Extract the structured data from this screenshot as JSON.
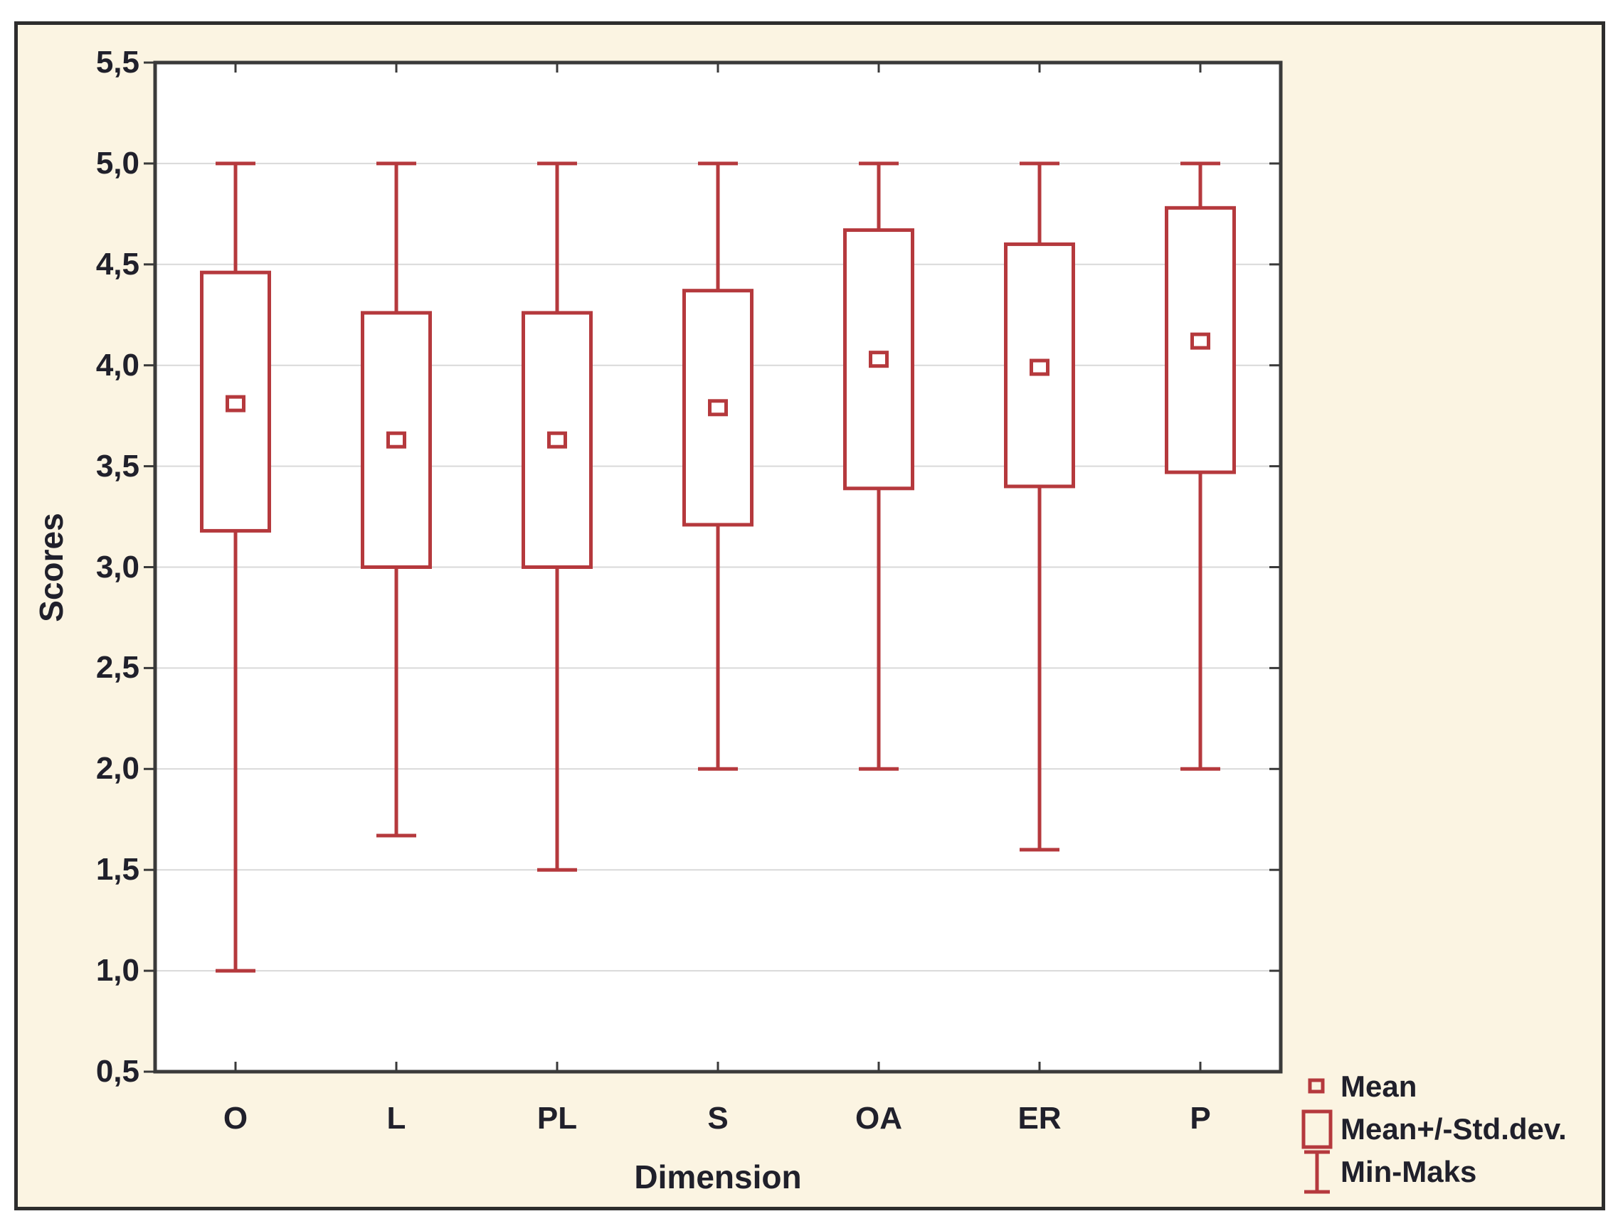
{
  "figure": {
    "y_axis_title": "Scores",
    "x_axis_title": "Dimension"
  },
  "chart_data": {
    "type": "box",
    "title": "",
    "xlabel": "Dimension",
    "ylabel": "Scores",
    "ylim": [
      0.5,
      5.5
    ],
    "ytick_step": 0.5,
    "ytick_labels": [
      "5,5",
      "5,0",
      "4,5",
      "4,0",
      "3,5",
      "3,0",
      "2,5",
      "2,0",
      "1,5",
      "1,0",
      "0,5"
    ],
    "grid": "horizontal",
    "categories": [
      "O",
      "L",
      "PL",
      "S",
      "OA",
      "ER",
      "P"
    ],
    "series": [
      {
        "category": "O",
        "mean": 3.81,
        "box_low": 3.18,
        "box_high": 4.46,
        "min": 1.0,
        "max": 5.0
      },
      {
        "category": "L",
        "mean": 3.63,
        "box_low": 3.0,
        "box_high": 4.26,
        "min": 1.67,
        "max": 5.0
      },
      {
        "category": "PL",
        "mean": 3.63,
        "box_low": 3.0,
        "box_high": 4.26,
        "min": 1.5,
        "max": 5.0
      },
      {
        "category": "S",
        "mean": 3.79,
        "box_low": 3.21,
        "box_high": 4.37,
        "min": 2.0,
        "max": 5.0
      },
      {
        "category": "OA",
        "mean": 4.03,
        "box_low": 3.39,
        "box_high": 4.67,
        "min": 2.0,
        "max": 5.0
      },
      {
        "category": "ER",
        "mean": 3.99,
        "box_low": 3.4,
        "box_high": 4.6,
        "min": 1.6,
        "max": 5.0
      },
      {
        "category": "P",
        "mean": 4.12,
        "box_low": 3.47,
        "box_high": 4.78,
        "min": 2.0,
        "max": 5.0
      }
    ],
    "legend": [
      {
        "label": "Mean",
        "marker": "small-square"
      },
      {
        "label": "Mean+/-Std.dev.",
        "marker": "large-square"
      },
      {
        "label": "Min-Maks",
        "marker": "error-bar"
      }
    ],
    "legend_position": "bottom-right",
    "colors": {
      "box": "#b5393d",
      "figure_background": "#fbf4e2",
      "plot_background": "#ffffff",
      "grid": "#d9d9d9",
      "axis": "#3a3a3a",
      "frame": "#2d2d2d",
      "text": "#20202b"
    }
  }
}
